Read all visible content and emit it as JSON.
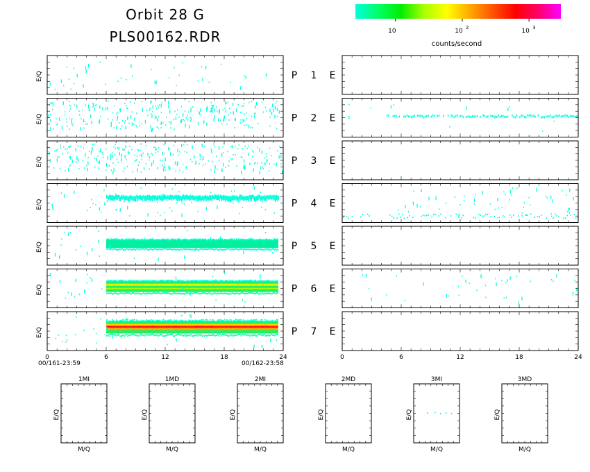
{
  "header": {
    "title_line1": "Orbit 28 G",
    "title_line2": "PLS00162.RDR"
  },
  "colorbar": {
    "label": "counts/second",
    "ticks": [
      {
        "value": 10,
        "base": "10",
        "exp": ""
      },
      {
        "value": 100,
        "base": "10",
        "exp": "2"
      },
      {
        "value": 1000,
        "base": "10",
        "exp": "3"
      }
    ],
    "range": [
      2.5,
      3000
    ],
    "colors": [
      "#00ffdd",
      "#00ff66",
      "#00ee00",
      "#aaff00",
      "#ffff00",
      "#ffaa00",
      "#ff5500",
      "#ff0000",
      "#ff0066",
      "#ff00ff"
    ]
  },
  "chart_data": {
    "type": "heatmap",
    "xlim": [
      0,
      24
    ],
    "xticks": [
      "0",
      "6",
      "12",
      "18",
      "24"
    ],
    "ylabel": "E/Q",
    "start_label": "00/161-23:59",
    "end_label": "00/162-23:58",
    "rows": [
      {
        "p_label": "P",
        "e_label": "E",
        "index": "1",
        "left": {
          "pattern": "sparse",
          "level": 1
        },
        "right": {
          "pattern": "empty",
          "level": 0
        }
      },
      {
        "p_label": "P",
        "e_label": "E",
        "index": "2",
        "left": {
          "pattern": "scatter",
          "level": 1
        },
        "right": {
          "pattern": "line",
          "level": 1,
          "start_hour": 4.5,
          "band_fraction": 0.45
        }
      },
      {
        "p_label": "P",
        "e_label": "E",
        "index": "3",
        "left": {
          "pattern": "scatter",
          "level": 1
        },
        "right": {
          "pattern": "empty",
          "level": 0
        }
      },
      {
        "p_label": "P",
        "e_label": "E",
        "index": "4",
        "left": {
          "pattern": "band",
          "level": 1,
          "start_hour": 6,
          "end_hour": 23.5,
          "band_fraction": 0.35
        },
        "right": {
          "pattern": "lowband",
          "level": 1
        }
      },
      {
        "p_label": "P",
        "e_label": "E",
        "index": "5",
        "left": {
          "pattern": "band",
          "level": 2,
          "start_hour": 6,
          "end_hour": 23.5,
          "band_fraction": 0.45
        },
        "right": {
          "pattern": "empty",
          "level": 0
        }
      },
      {
        "p_label": "P",
        "e_label": "E",
        "index": "6",
        "left": {
          "pattern": "band",
          "level": 3,
          "start_hour": 6,
          "end_hour": 23.5,
          "band_fraction": 0.45
        },
        "right": {
          "pattern": "sparse",
          "level": 1
        }
      },
      {
        "p_label": "P",
        "e_label": "E",
        "index": "7",
        "left": {
          "pattern": "band",
          "level": 4,
          "start_hour": 6,
          "end_hour": 23.5,
          "band_fraction": 0.4
        },
        "right": {
          "pattern": "empty",
          "level": 0
        }
      }
    ],
    "small_panels": [
      {
        "title": "1MI",
        "xlabel": "M/Q",
        "ylabel": "E/Q",
        "has_data": false
      },
      {
        "title": "1MD",
        "xlabel": "M/Q",
        "ylabel": "E/Q",
        "has_data": false
      },
      {
        "title": "2MI",
        "xlabel": "M/Q",
        "ylabel": "E/Q",
        "has_data": false
      },
      {
        "title": "2MD",
        "xlabel": "M/Q",
        "ylabel": "E/Q",
        "has_data": false
      },
      {
        "title": "3MI",
        "xlabel": "M/Q",
        "ylabel": "E/Q",
        "has_data": true
      },
      {
        "title": "3MD",
        "xlabel": "M/Q",
        "ylabel": "E/Q",
        "has_data": false
      }
    ]
  }
}
